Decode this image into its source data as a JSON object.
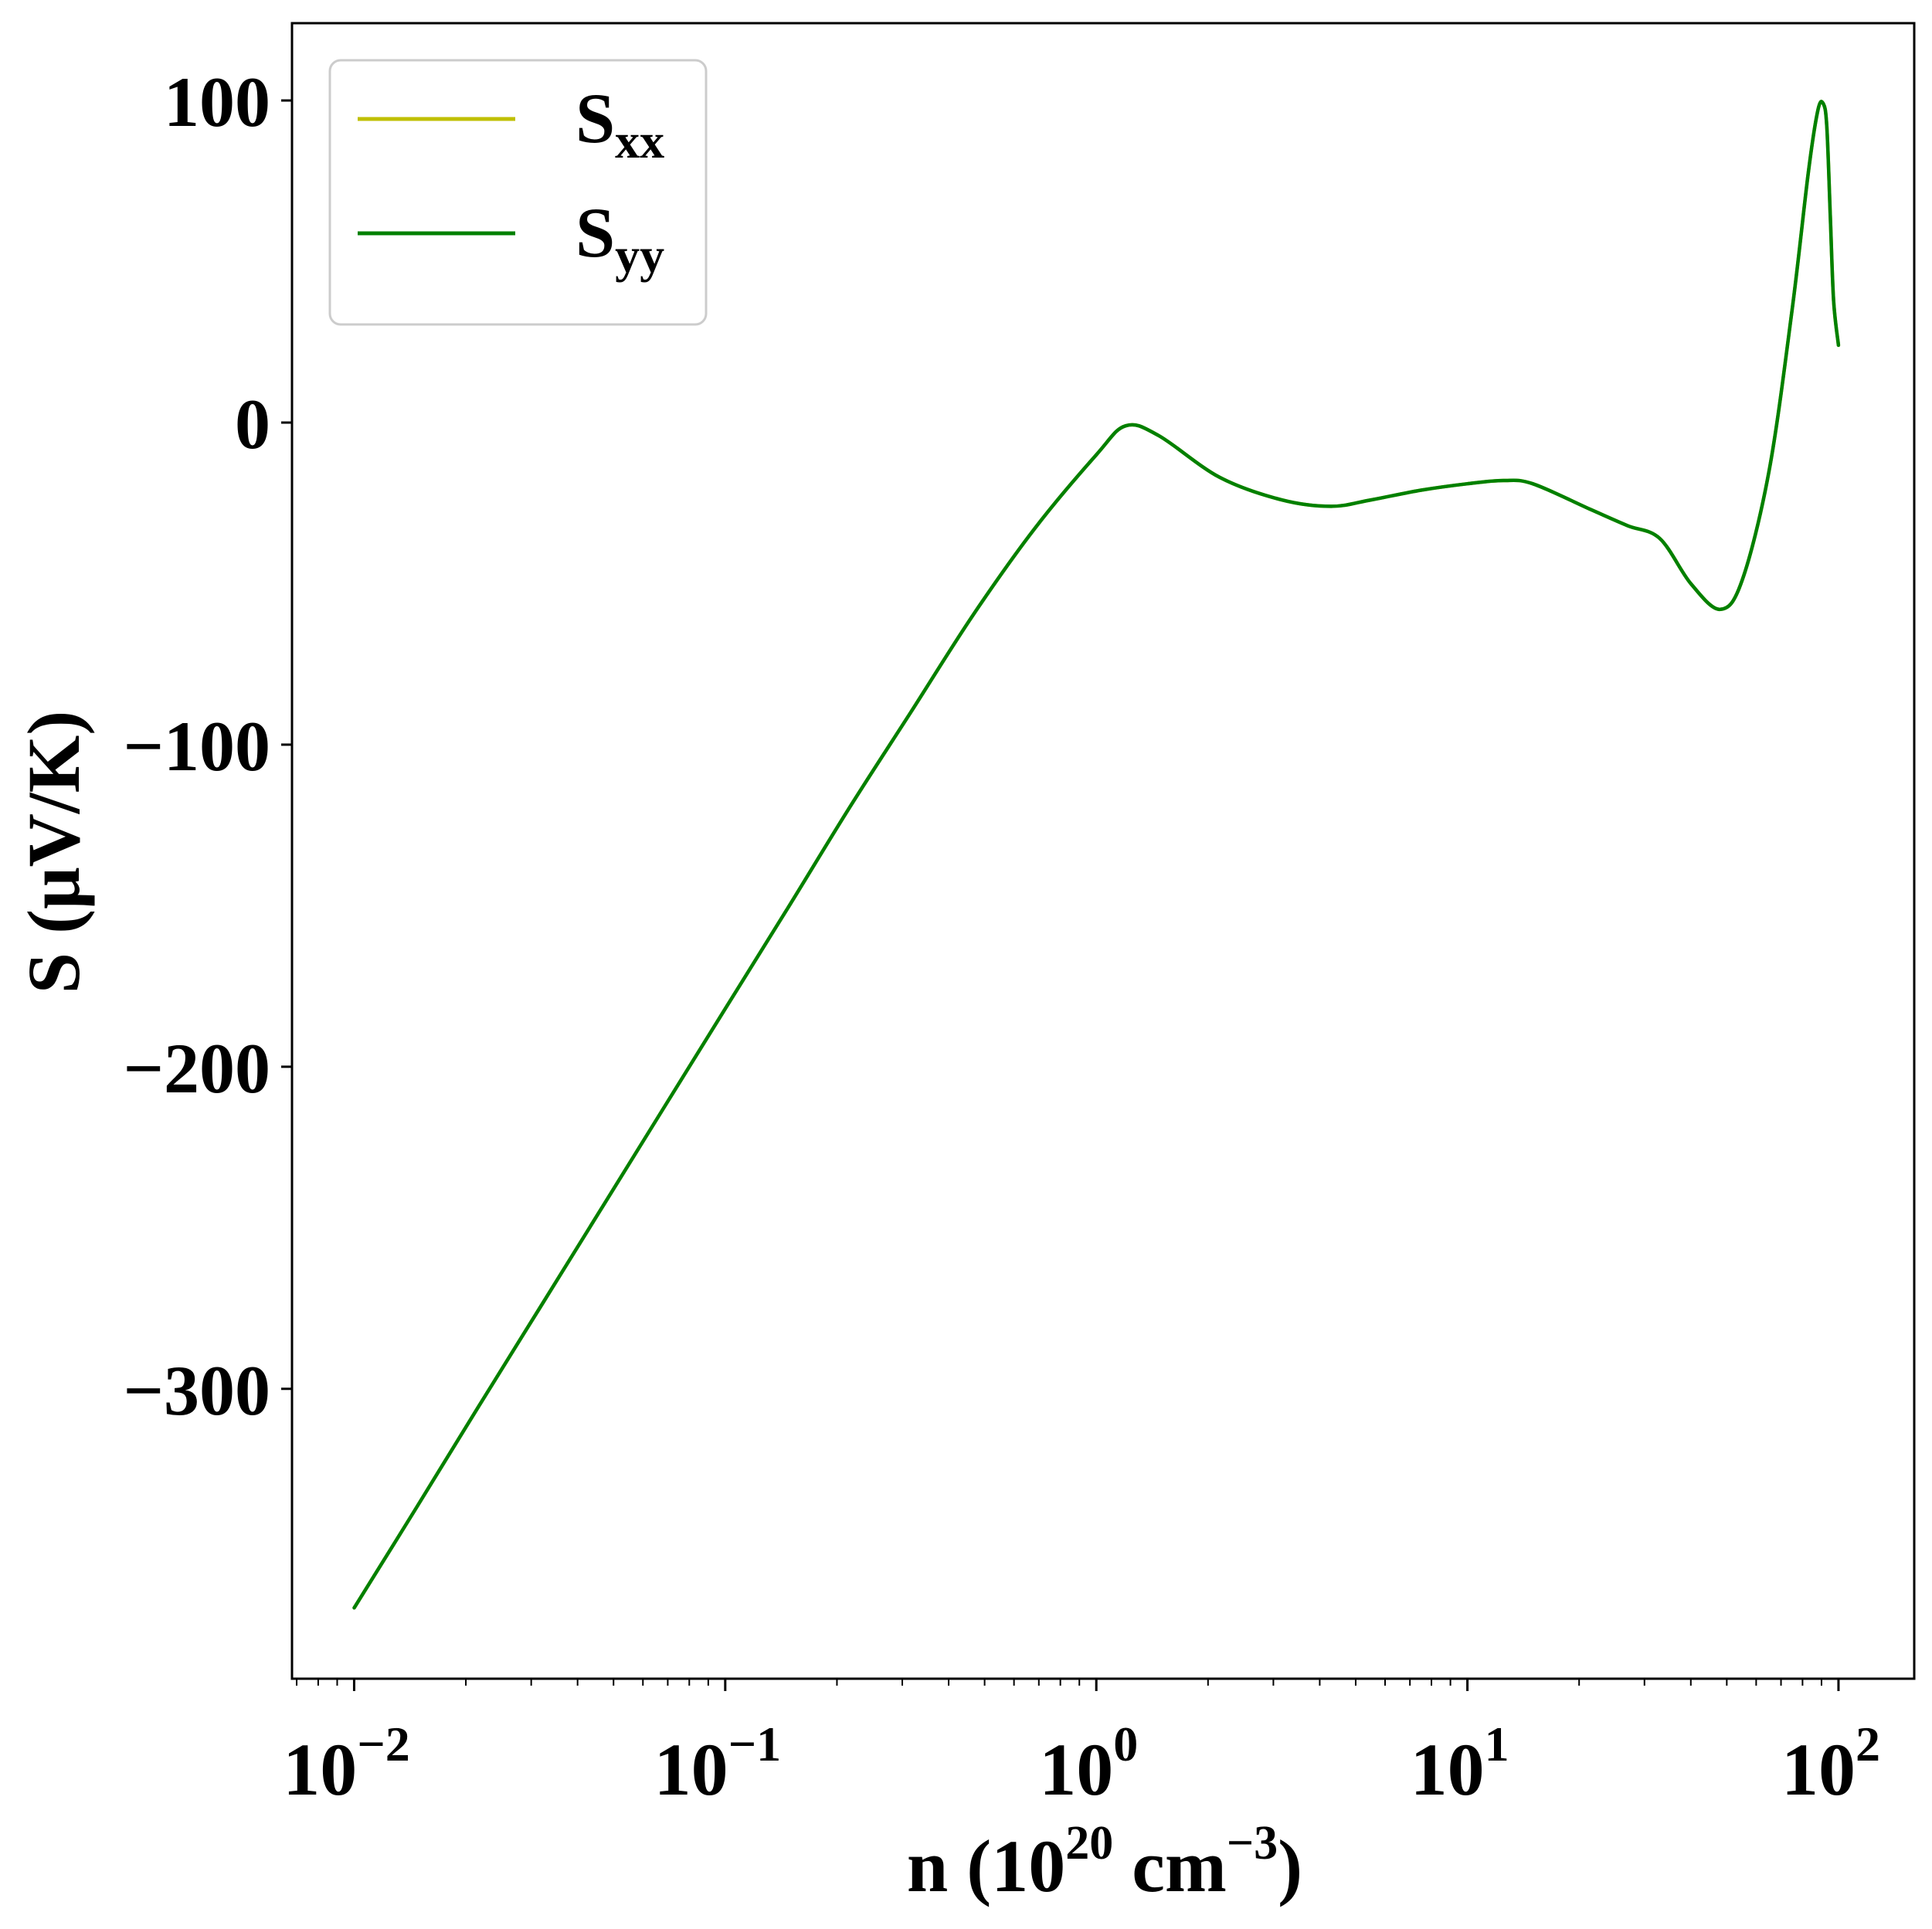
{
  "chart_data": {
    "type": "line",
    "xscale": "log",
    "xlim": [
      0.0068,
      160
    ],
    "ylim": [
      -390,
      124
    ],
    "grid": false,
    "legend_placement": "top-left",
    "xlabel": {
      "base": "n (10",
      "sup1": "20",
      "mid": " cm",
      "sup2": "−3",
      "end": ")"
    },
    "ylabel": "S (μV/K)",
    "x_ticks": [
      {
        "value": 0.01,
        "base": "10",
        "exp": "−2"
      },
      {
        "value": 0.1,
        "base": "10",
        "exp": "−1"
      },
      {
        "value": 1,
        "base": "10",
        "exp": "0"
      },
      {
        "value": 10,
        "base": "10",
        "exp": "1"
      },
      {
        "value": 100,
        "base": "10",
        "exp": "2"
      }
    ],
    "y_ticks": [
      {
        "value": 100,
        "label": "100"
      },
      {
        "value": 0,
        "label": "0"
      },
      {
        "value": -100,
        "label": "−100"
      },
      {
        "value": -200,
        "label": "−200"
      },
      {
        "value": -300,
        "label": "−300"
      }
    ],
    "series": [
      {
        "key": "sxx",
        "label_main": "S",
        "label_sub": "xx",
        "color": "#bfbf00",
        "x": [
          0.01,
          0.0147,
          0.0215,
          0.0316,
          0.0464,
          0.0681,
          0.1,
          0.147,
          0.215,
          0.316,
          0.464,
          0.681,
          1.0,
          1.2,
          1.47,
          2.15,
          3.16,
          4.3,
          5.5,
          7.5,
          10.0,
          12.5,
          15.0,
          21.5,
          27.0,
          33.0,
          40.0,
          48.0,
          55.0,
          65.0,
          75.0,
          83.0,
          88.0,
          91.0,
          93.0,
          95.0,
          97.0,
          100.0
        ],
        "y": [
          -368,
          -337,
          -306,
          -275,
          -244,
          -213,
          -182,
          -151,
          -120,
          -90,
          -60,
          -33,
          -10,
          -1,
          -4,
          -17,
          -24,
          -26,
          -24,
          -21,
          -19,
          -18,
          -19,
          -27,
          -32,
          -36,
          -50,
          -58,
          -49,
          -15,
          35,
          78,
          97,
          99,
          92,
          65,
          38,
          24
        ]
      },
      {
        "key": "syy",
        "label_main": "S",
        "label_sub": "yy",
        "color": "#008000",
        "x": [
          0.01,
          0.0147,
          0.0215,
          0.0316,
          0.0464,
          0.0681,
          0.1,
          0.147,
          0.215,
          0.316,
          0.464,
          0.681,
          1.0,
          1.2,
          1.47,
          2.15,
          3.16,
          4.3,
          5.5,
          7.5,
          10.0,
          12.5,
          15.0,
          21.5,
          27.0,
          33.0,
          40.0,
          48.0,
          55.0,
          65.0,
          75.0,
          83.0,
          88.0,
          91.0,
          93.0,
          95.0,
          97.0,
          100.0
        ],
        "y": [
          -368,
          -337,
          -306,
          -275,
          -244,
          -213,
          -182,
          -151,
          -120,
          -90,
          -60,
          -33,
          -10,
          -1,
          -4,
          -17,
          -24,
          -26,
          -24,
          -21,
          -19,
          -18,
          -19,
          -27,
          -32,
          -36,
          -50,
          -58,
          -49,
          -15,
          35,
          78,
          97,
          99,
          92,
          65,
          38,
          24
        ]
      }
    ]
  }
}
